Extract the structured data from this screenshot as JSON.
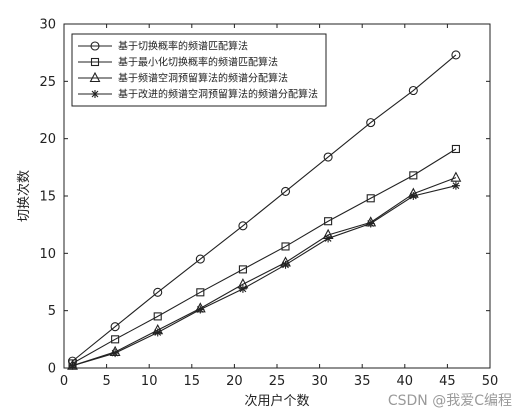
{
  "chart_data": {
    "type": "line",
    "xlabel": "次用户个数",
    "ylabel": "切换次数",
    "xlim": [
      0,
      50
    ],
    "ylim": [
      0,
      30
    ],
    "xticks": [
      0,
      5,
      10,
      15,
      20,
      25,
      30,
      35,
      40,
      45,
      50
    ],
    "yticks": [
      0,
      5,
      10,
      15,
      20,
      25,
      30
    ],
    "grid": false,
    "legend_position": "top-left",
    "x": [
      1,
      6,
      11,
      16,
      21,
      26,
      31,
      36,
      41,
      46
    ],
    "series": [
      {
        "name": "基于切换概率的频谱匹配算法",
        "marker": "circle",
        "values": [
          0.6,
          3.6,
          6.6,
          9.5,
          12.4,
          15.4,
          18.4,
          21.4,
          24.2,
          27.3
        ]
      },
      {
        "name": "基于最小化切换概率的频谱匹配算法",
        "marker": "square",
        "values": [
          0.4,
          2.5,
          4.5,
          6.6,
          8.6,
          10.6,
          12.8,
          14.8,
          16.8,
          19.1
        ]
      },
      {
        "name": "基于频谱空洞预留算法的频谱分配算法",
        "marker": "triangle",
        "values": [
          0.2,
          1.4,
          3.3,
          5.2,
          7.3,
          9.2,
          11.6,
          12.7,
          15.2,
          16.6
        ]
      },
      {
        "name": "基于改进的频谱空洞预留算法的频谱分配算法",
        "marker": "star",
        "values": [
          0.2,
          1.3,
          3.1,
          5.1,
          6.9,
          9.0,
          11.3,
          12.6,
          15.0,
          15.9
        ]
      }
    ]
  },
  "watermark": "CSDN @我爱C编程"
}
